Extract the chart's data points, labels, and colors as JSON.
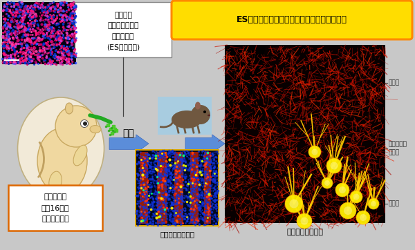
{
  "bg_color": "#c8c8c8",
  "title_box_text": "ES細胞由来のプルキンエ細胞の生着（黄色）",
  "title_box_bg": "#ffdd00",
  "title_box_edge": "#ff8800",
  "top_left_label": "純化した\nプルキンエ細胞\nの前駆細胞\n(ES細胞由来)",
  "bottom_left_label": "マウス胚仔\n妊娠16日目\nの小脳へ移植",
  "bottom_left_box_edge": "#dd6600",
  "arrow_label": "出生",
  "week1_label": "生後１週目の小脳",
  "month1_label": "生後１カ月の小脳",
  "layer1": "分子層",
  "layer2": "プルキンエ\n細胞層",
  "layer3": "顆粒層",
  "fig_width": 6.0,
  "fig_height": 3.62
}
